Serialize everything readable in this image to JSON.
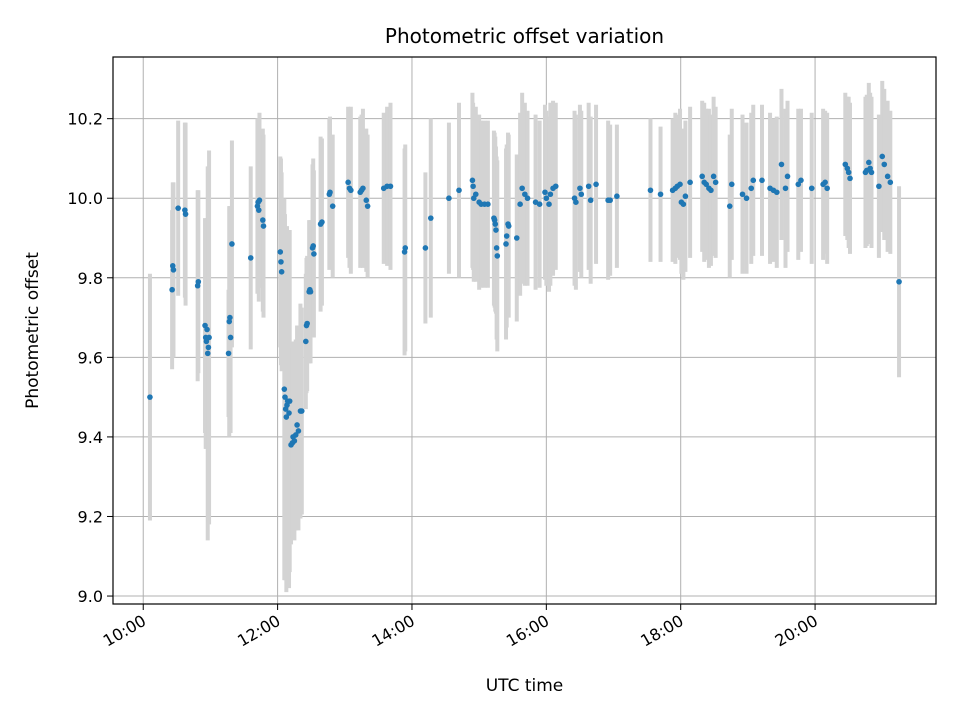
{
  "chart_data": {
    "type": "scatter",
    "title": "Photometric offset variation",
    "xlabel": "UTC time",
    "ylabel": "Photometric offset",
    "x_unit": "hour",
    "xlim": [
      9.55,
      21.8
    ],
    "ylim": [
      8.98,
      10.355
    ],
    "x_ticks": [
      10,
      12,
      14,
      16,
      18,
      20
    ],
    "x_tick_labels": [
      "10:00",
      "12:00",
      "14:00",
      "16:00",
      "18:00",
      "20:00"
    ],
    "y_ticks": [
      9.0,
      9.2,
      9.4,
      9.6,
      9.8,
      10.0,
      10.2
    ],
    "y_tick_labels": [
      "9.0",
      "9.2",
      "9.4",
      "9.6",
      "9.8",
      "10.0",
      "10.2"
    ],
    "grid": true,
    "colors": {
      "point": "#1f77b4",
      "errorbar": "#d3d3d3",
      "grid": "#b0b0b0"
    },
    "points": [
      {
        "x": 10.1,
        "y": 9.5,
        "e": 0.31
      },
      {
        "x": 10.43,
        "y": 9.77,
        "e": 0.2
      },
      {
        "x": 10.44,
        "y": 9.83,
        "e": 0.21
      },
      {
        "x": 10.45,
        "y": 9.82,
        "e": 0.22
      },
      {
        "x": 10.52,
        "y": 9.975,
        "e": 0.22
      },
      {
        "x": 10.62,
        "y": 9.97,
        "e": 0.22
      },
      {
        "x": 10.63,
        "y": 9.96,
        "e": 0.23
      },
      {
        "x": 10.81,
        "y": 9.78,
        "e": 0.24
      },
      {
        "x": 10.82,
        "y": 9.79,
        "e": 0.23
      },
      {
        "x": 10.92,
        "y": 9.68,
        "e": 0.27
      },
      {
        "x": 10.93,
        "y": 9.65,
        "e": 0.28
      },
      {
        "x": 10.94,
        "y": 9.64,
        "e": 0.27
      },
      {
        "x": 10.95,
        "y": 9.67,
        "e": 0.28
      },
      {
        "x": 10.96,
        "y": 9.61,
        "e": 0.47
      },
      {
        "x": 10.97,
        "y": 9.625,
        "e": 0.44
      },
      {
        "x": 10.98,
        "y": 9.65,
        "e": 0.47
      },
      {
        "x": 11.27,
        "y": 9.61,
        "e": 0.16
      },
      {
        "x": 11.28,
        "y": 9.69,
        "e": 0.29
      },
      {
        "x": 11.29,
        "y": 9.7,
        "e": 0.28
      },
      {
        "x": 11.3,
        "y": 9.65,
        "e": 0.24
      },
      {
        "x": 11.32,
        "y": 9.885,
        "e": 0.26
      },
      {
        "x": 11.6,
        "y": 9.85,
        "e": 0.23
      },
      {
        "x": 11.7,
        "y": 9.98,
        "e": 0.22
      },
      {
        "x": 11.71,
        "y": 9.99,
        "e": 0.21
      },
      {
        "x": 11.72,
        "y": 9.97,
        "e": 0.23
      },
      {
        "x": 11.73,
        "y": 9.995,
        "e": 0.22
      },
      {
        "x": 11.78,
        "y": 9.945,
        "e": 0.23
      },
      {
        "x": 11.79,
        "y": 9.93,
        "e": 0.23
      },
      {
        "x": 12.04,
        "y": 9.865,
        "e": 0.24
      },
      {
        "x": 12.05,
        "y": 9.84,
        "e": 0.26
      },
      {
        "x": 12.06,
        "y": 9.815,
        "e": 0.25
      },
      {
        "x": 12.1,
        "y": 9.52,
        "e": 0.48
      },
      {
        "x": 12.11,
        "y": 9.5,
        "e": 0.46
      },
      {
        "x": 12.12,
        "y": 9.47,
        "e": 0.43
      },
      {
        "x": 12.13,
        "y": 9.45,
        "e": 0.44
      },
      {
        "x": 12.14,
        "y": 9.48,
        "e": 0.45
      },
      {
        "x": 12.15,
        "y": 9.49,
        "e": 0.43
      },
      {
        "x": 12.17,
        "y": 9.46,
        "e": 0.44
      },
      {
        "x": 12.18,
        "y": 9.49,
        "e": 0.43
      },
      {
        "x": 12.2,
        "y": 9.38,
        "e": 0.25
      },
      {
        "x": 12.22,
        "y": 9.385,
        "e": 0.24
      },
      {
        "x": 12.23,
        "y": 9.4,
        "e": 0.24
      },
      {
        "x": 12.25,
        "y": 9.39,
        "e": 0.25
      },
      {
        "x": 12.27,
        "y": 9.405,
        "e": 0.24
      },
      {
        "x": 12.29,
        "y": 9.43,
        "e": 0.25
      },
      {
        "x": 12.31,
        "y": 9.415,
        "e": 0.25
      },
      {
        "x": 12.34,
        "y": 9.465,
        "e": 0.27
      },
      {
        "x": 12.36,
        "y": 9.465,
        "e": 0.26
      },
      {
        "x": 12.42,
        "y": 9.64,
        "e": 0.17
      },
      {
        "x": 12.43,
        "y": 9.68,
        "e": 0.17
      },
      {
        "x": 12.44,
        "y": 9.685,
        "e": 0.17
      },
      {
        "x": 12.47,
        "y": 9.765,
        "e": 0.18
      },
      {
        "x": 12.48,
        "y": 9.77,
        "e": 0.17
      },
      {
        "x": 12.49,
        "y": 9.765,
        "e": 0.18
      },
      {
        "x": 12.52,
        "y": 9.875,
        "e": 0.21
      },
      {
        "x": 12.53,
        "y": 9.88,
        "e": 0.22
      },
      {
        "x": 12.54,
        "y": 9.86,
        "e": 0.21
      },
      {
        "x": 12.64,
        "y": 9.935,
        "e": 0.22
      },
      {
        "x": 12.66,
        "y": 9.94,
        "e": 0.21
      },
      {
        "x": 12.77,
        "y": 10.01,
        "e": 0.19
      },
      {
        "x": 12.78,
        "y": 10.015,
        "e": 0.19
      },
      {
        "x": 12.82,
        "y": 9.98,
        "e": 0.18
      },
      {
        "x": 13.05,
        "y": 10.04,
        "e": 0.19
      },
      {
        "x": 13.07,
        "y": 10.025,
        "e": 0.2
      },
      {
        "x": 13.09,
        "y": 10.02,
        "e": 0.21
      },
      {
        "x": 13.23,
        "y": 10.015,
        "e": 0.19
      },
      {
        "x": 13.25,
        "y": 10.02,
        "e": 0.19
      },
      {
        "x": 13.27,
        "y": 10.025,
        "e": 0.2
      },
      {
        "x": 13.32,
        "y": 9.995,
        "e": 0.18
      },
      {
        "x": 13.34,
        "y": 9.98,
        "e": 0.18
      },
      {
        "x": 13.58,
        "y": 10.025,
        "e": 0.19
      },
      {
        "x": 13.63,
        "y": 10.03,
        "e": 0.2
      },
      {
        "x": 13.68,
        "y": 10.03,
        "e": 0.21
      },
      {
        "x": 13.89,
        "y": 9.865,
        "e": 0.26
      },
      {
        "x": 13.9,
        "y": 9.875,
        "e": 0.26
      },
      {
        "x": 14.2,
        "y": 9.875,
        "e": 0.19
      },
      {
        "x": 14.28,
        "y": 9.95,
        "e": 0.25
      },
      {
        "x": 14.55,
        "y": 10.0,
        "e": 0.19
      },
      {
        "x": 14.7,
        "y": 10.02,
        "e": 0.22
      },
      {
        "x": 14.9,
        "y": 10.045,
        "e": 0.22
      },
      {
        "x": 14.91,
        "y": 10.03,
        "e": 0.21
      },
      {
        "x": 14.92,
        "y": 10.0,
        "e": 0.21
      },
      {
        "x": 14.95,
        "y": 10.01,
        "e": 0.22
      },
      {
        "x": 15.0,
        "y": 9.99,
        "e": 0.22
      },
      {
        "x": 15.03,
        "y": 9.985,
        "e": 0.21
      },
      {
        "x": 15.08,
        "y": 9.985,
        "e": 0.21
      },
      {
        "x": 15.13,
        "y": 9.985,
        "e": 0.21
      },
      {
        "x": 15.22,
        "y": 9.95,
        "e": 0.22
      },
      {
        "x": 15.23,
        "y": 9.945,
        "e": 0.22
      },
      {
        "x": 15.24,
        "y": 9.935,
        "e": 0.22
      },
      {
        "x": 15.25,
        "y": 9.92,
        "e": 0.21
      },
      {
        "x": 15.26,
        "y": 9.875,
        "e": 0.23
      },
      {
        "x": 15.27,
        "y": 9.855,
        "e": 0.24
      },
      {
        "x": 15.4,
        "y": 9.885,
        "e": 0.24
      },
      {
        "x": 15.41,
        "y": 9.905,
        "e": 0.23
      },
      {
        "x": 15.43,
        "y": 9.935,
        "e": 0.23
      },
      {
        "x": 15.44,
        "y": 9.93,
        "e": 0.23
      },
      {
        "x": 15.56,
        "y": 9.9,
        "e": 0.21
      },
      {
        "x": 15.61,
        "y": 9.985,
        "e": 0.23
      },
      {
        "x": 15.64,
        "y": 10.025,
        "e": 0.24
      },
      {
        "x": 15.68,
        "y": 10.01,
        "e": 0.23
      },
      {
        "x": 15.72,
        "y": 10.0,
        "e": 0.22
      },
      {
        "x": 15.84,
        "y": 9.99,
        "e": 0.22
      },
      {
        "x": 15.9,
        "y": 9.985,
        "e": 0.21
      },
      {
        "x": 15.98,
        "y": 10.015,
        "e": 0.22
      },
      {
        "x": 16.0,
        "y": 10.0,
        "e": 0.22
      },
      {
        "x": 16.04,
        "y": 9.985,
        "e": 0.22
      },
      {
        "x": 16.06,
        "y": 10.01,
        "e": 0.23
      },
      {
        "x": 16.1,
        "y": 10.025,
        "e": 0.22
      },
      {
        "x": 16.14,
        "y": 10.03,
        "e": 0.21
      },
      {
        "x": 16.42,
        "y": 10.0,
        "e": 0.22
      },
      {
        "x": 16.44,
        "y": 9.99,
        "e": 0.22
      },
      {
        "x": 16.5,
        "y": 10.025,
        "e": 0.21
      },
      {
        "x": 16.52,
        "y": 10.01,
        "e": 0.21
      },
      {
        "x": 16.63,
        "y": 10.03,
        "e": 0.21
      },
      {
        "x": 16.66,
        "y": 9.995,
        "e": 0.21
      },
      {
        "x": 16.74,
        "y": 10.035,
        "e": 0.2
      },
      {
        "x": 16.92,
        "y": 9.995,
        "e": 0.2
      },
      {
        "x": 16.95,
        "y": 9.995,
        "e": 0.19
      },
      {
        "x": 17.05,
        "y": 10.005,
        "e": 0.18
      },
      {
        "x": 17.55,
        "y": 10.02,
        "e": 0.18
      },
      {
        "x": 17.7,
        "y": 10.01,
        "e": 0.17
      },
      {
        "x": 17.88,
        "y": 10.02,
        "e": 0.18
      },
      {
        "x": 17.92,
        "y": 10.025,
        "e": 0.19
      },
      {
        "x": 17.95,
        "y": 10.03,
        "e": 0.18
      },
      {
        "x": 17.99,
        "y": 10.035,
        "e": 0.19
      },
      {
        "x": 18.01,
        "y": 9.99,
        "e": 0.18
      },
      {
        "x": 18.04,
        "y": 9.985,
        "e": 0.19
      },
      {
        "x": 18.07,
        "y": 10.005,
        "e": 0.19
      },
      {
        "x": 18.14,
        "y": 10.04,
        "e": 0.19
      },
      {
        "x": 18.32,
        "y": 10.055,
        "e": 0.19
      },
      {
        "x": 18.35,
        "y": 10.04,
        "e": 0.2
      },
      {
        "x": 18.38,
        "y": 10.035,
        "e": 0.19
      },
      {
        "x": 18.42,
        "y": 10.025,
        "e": 0.2
      },
      {
        "x": 18.45,
        "y": 10.02,
        "e": 0.19
      },
      {
        "x": 18.49,
        "y": 10.055,
        "e": 0.2
      },
      {
        "x": 18.52,
        "y": 10.04,
        "e": 0.19
      },
      {
        "x": 18.73,
        "y": 9.98,
        "e": 0.18
      },
      {
        "x": 18.76,
        "y": 10.035,
        "e": 0.19
      },
      {
        "x": 18.92,
        "y": 10.01,
        "e": 0.2
      },
      {
        "x": 18.98,
        "y": 10.0,
        "e": 0.19
      },
      {
        "x": 19.05,
        "y": 10.025,
        "e": 0.19
      },
      {
        "x": 19.08,
        "y": 10.045,
        "e": 0.19
      },
      {
        "x": 19.21,
        "y": 10.045,
        "e": 0.19
      },
      {
        "x": 19.33,
        "y": 10.025,
        "e": 0.19
      },
      {
        "x": 19.38,
        "y": 10.02,
        "e": 0.18
      },
      {
        "x": 19.43,
        "y": 10.015,
        "e": 0.19
      },
      {
        "x": 19.5,
        "y": 10.085,
        "e": 0.19
      },
      {
        "x": 19.56,
        "y": 10.025,
        "e": 0.2
      },
      {
        "x": 19.59,
        "y": 10.055,
        "e": 0.19
      },
      {
        "x": 19.75,
        "y": 10.035,
        "e": 0.19
      },
      {
        "x": 19.79,
        "y": 10.045,
        "e": 0.18
      },
      {
        "x": 19.95,
        "y": 10.025,
        "e": 0.19
      },
      {
        "x": 20.12,
        "y": 10.035,
        "e": 0.19
      },
      {
        "x": 20.15,
        "y": 10.04,
        "e": 0.18
      },
      {
        "x": 20.18,
        "y": 10.025,
        "e": 0.19
      },
      {
        "x": 20.45,
        "y": 10.085,
        "e": 0.18
      },
      {
        "x": 20.48,
        "y": 10.075,
        "e": 0.18
      },
      {
        "x": 20.5,
        "y": 10.065,
        "e": 0.19
      },
      {
        "x": 20.52,
        "y": 10.05,
        "e": 0.19
      },
      {
        "x": 20.75,
        "y": 10.065,
        "e": 0.19
      },
      {
        "x": 20.77,
        "y": 10.07,
        "e": 0.19
      },
      {
        "x": 20.8,
        "y": 10.09,
        "e": 0.2
      },
      {
        "x": 20.82,
        "y": 10.075,
        "e": 0.19
      },
      {
        "x": 20.84,
        "y": 10.065,
        "e": 0.19
      },
      {
        "x": 20.95,
        "y": 10.03,
        "e": 0.18
      },
      {
        "x": 21.0,
        "y": 10.105,
        "e": 0.19
      },
      {
        "x": 21.03,
        "y": 10.085,
        "e": 0.19
      },
      {
        "x": 21.08,
        "y": 10.055,
        "e": 0.19
      },
      {
        "x": 21.12,
        "y": 10.04,
        "e": 0.18
      },
      {
        "x": 21.25,
        "y": 9.79,
        "e": 0.24
      }
    ]
  }
}
